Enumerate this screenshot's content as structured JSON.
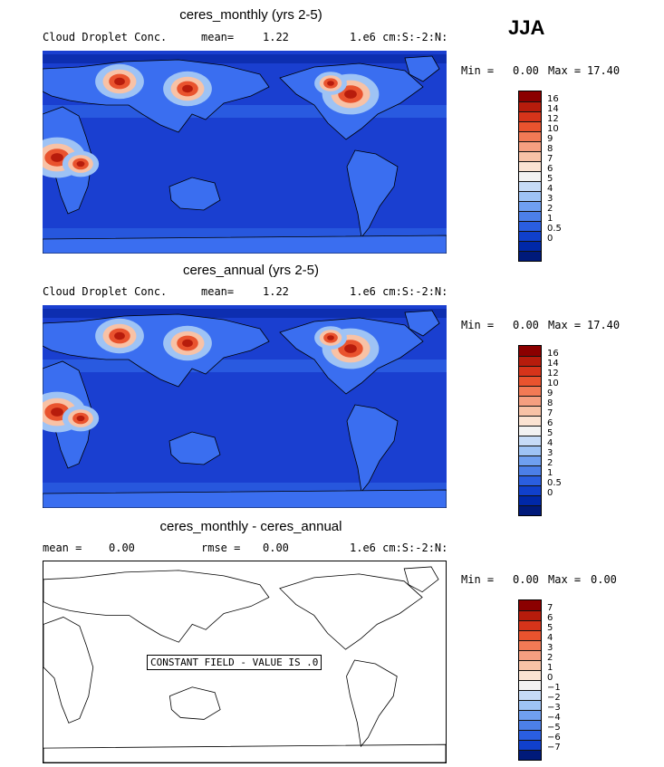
{
  "season": "JJA",
  "panels": [
    {
      "title": "ceres_monthly (yrs 2-5)",
      "variable": "Cloud Droplet Conc.",
      "mean_label": "mean=",
      "mean_value": "1.22",
      "units": "1.e6 cm:S:-2:N:",
      "minmax": {
        "min_label": "Min =",
        "min": "0.00",
        "max_label": "Max =",
        "max": "17.40"
      },
      "colorbar": {
        "labels": [
          "16",
          "14",
          "12",
          "10",
          "9",
          "8",
          "7",
          "6",
          "5",
          "4",
          "3",
          "2",
          "1",
          "0.5",
          "0"
        ],
        "colors": [
          "#8b0000",
          "#b71c0c",
          "#d6341a",
          "#e9532e",
          "#f27a55",
          "#f59f80",
          "#f8c2a6",
          "#fbe3d2",
          "#f2f2f2",
          "#c6dbf7",
          "#9ec3f5",
          "#6f9ff0",
          "#4c7fe8",
          "#2a5ee0",
          "#1040cc",
          "#0028a8",
          "#001a7a"
        ]
      },
      "map_style": "filled"
    },
    {
      "title": "ceres_annual (yrs 2-5)",
      "variable": "Cloud Droplet Conc.",
      "mean_label": "mean=",
      "mean_value": "1.22",
      "units": "1.e6 cm:S:-2:N:",
      "minmax": {
        "min_label": "Min =",
        "min": "0.00",
        "max_label": "Max =",
        "max": "17.40"
      },
      "colorbar": {
        "labels": [
          "16",
          "14",
          "12",
          "10",
          "9",
          "8",
          "7",
          "6",
          "5",
          "4",
          "3",
          "2",
          "1",
          "0.5",
          "0"
        ],
        "colors": [
          "#8b0000",
          "#b71c0c",
          "#d6341a",
          "#e9532e",
          "#f27a55",
          "#f59f80",
          "#f8c2a6",
          "#fbe3d2",
          "#f2f2f2",
          "#c6dbf7",
          "#9ec3f5",
          "#6f9ff0",
          "#4c7fe8",
          "#2a5ee0",
          "#1040cc",
          "#0028a8",
          "#001a7a"
        ]
      },
      "map_style": "filled"
    },
    {
      "title": "ceres_monthly - ceres_annual",
      "mean_label": "mean =",
      "mean_value": "0.00",
      "rmse_label": "rmse =",
      "rmse_value": "0.00",
      "units": "1.e6 cm:S:-2:N:",
      "constant_field_text": "CONSTANT FIELD - VALUE IS .0",
      "minmax": {
        "min_label": "Min =",
        "min": "0.00",
        "max_label": "Max =",
        "max": "0.00"
      },
      "colorbar": {
        "labels": [
          "7",
          "6",
          "5",
          "4",
          "3",
          "2",
          "1",
          "0",
          "−1",
          "−2",
          "−3",
          "−4",
          "−5",
          "−6",
          "−7"
        ],
        "colors": [
          "#8b0000",
          "#b71c0c",
          "#d6341a",
          "#e9532e",
          "#f27a55",
          "#f59f80",
          "#f8c2a6",
          "#fbe3d2",
          "#f2f2f2",
          "#c6dbf7",
          "#9ec3f5",
          "#6f9ff0",
          "#4c7fe8",
          "#2a5ee0",
          "#1040cc",
          "#001a7a"
        ]
      },
      "map_style": "outline"
    }
  ]
}
